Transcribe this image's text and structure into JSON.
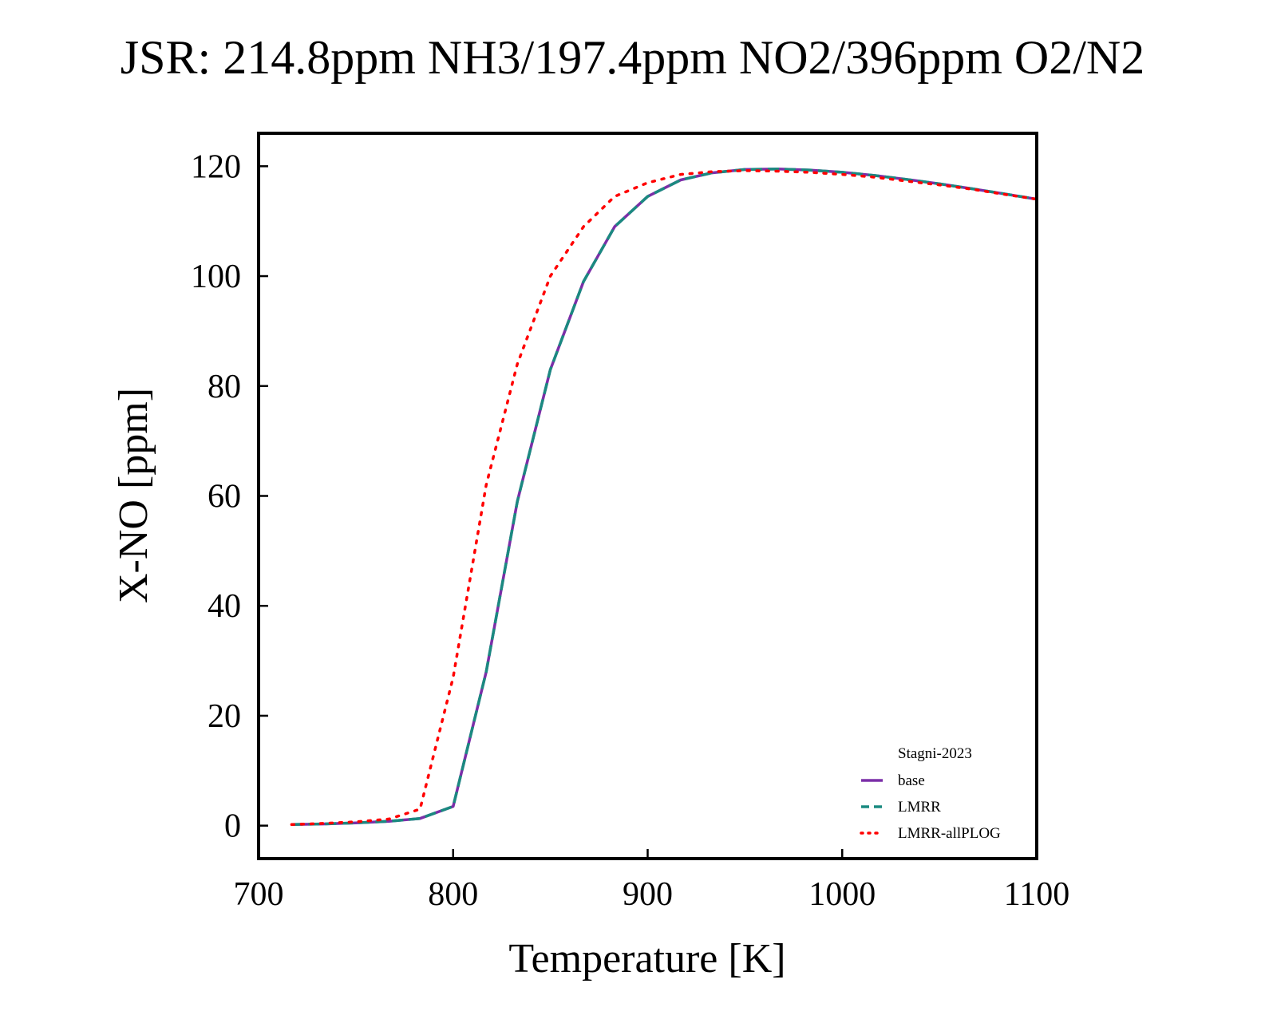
{
  "chart_data": {
    "type": "line",
    "title": "JSR: 214.8ppm NH3/197.4ppm NO2/396ppm O2/N2",
    "xlabel": "Temperature [K]",
    "ylabel": "X-NO [ppm]",
    "xlim": [
      700,
      1100
    ],
    "ylim": [
      -6,
      126
    ],
    "xticks": [
      700,
      800,
      900,
      1000,
      1100
    ],
    "yticks": [
      0,
      20,
      40,
      60,
      80,
      100,
      120
    ],
    "grid": false,
    "legend": {
      "title": "Stagni-2023",
      "placement": "lower-right"
    },
    "series": [
      {
        "name": "base",
        "color": "#7b2fa8",
        "style": "solid",
        "x": [
          717,
          733,
          750,
          767,
          783,
          800,
          817,
          833,
          850,
          867,
          883,
          900,
          917,
          933,
          950,
          967,
          983,
          1000,
          1017,
          1033,
          1050,
          1067,
          1083,
          1100
        ],
        "y": [
          0.2,
          0.3,
          0.5,
          0.8,
          1.3,
          3.5,
          28,
          59,
          83,
          99,
          109,
          114.5,
          117.5,
          118.8,
          119.4,
          119.5,
          119.3,
          118.9,
          118.3,
          117.6,
          116.8,
          115.9,
          115.0,
          114.0
        ]
      },
      {
        "name": "LMRR",
        "color": "#1a8a80",
        "style": "dashed",
        "x": [
          717,
          733,
          750,
          767,
          783,
          800,
          817,
          833,
          850,
          867,
          883,
          900,
          917,
          933,
          950,
          967,
          983,
          1000,
          1017,
          1033,
          1050,
          1067,
          1083,
          1100
        ],
        "y": [
          0.2,
          0.3,
          0.5,
          0.8,
          1.3,
          3.5,
          28,
          59,
          83,
          99,
          109,
          114.5,
          117.5,
          118.8,
          119.4,
          119.5,
          119.3,
          118.9,
          118.3,
          117.6,
          116.8,
          115.9,
          115.0,
          114.0
        ]
      },
      {
        "name": "LMRR-allPLOG",
        "color": "#ff0000",
        "style": "dotted",
        "x": [
          717,
          733,
          750,
          767,
          783,
          800,
          817,
          833,
          850,
          867,
          883,
          900,
          917,
          933,
          950,
          967,
          983,
          1000,
          1017,
          1033,
          1050,
          1067,
          1083,
          1100
        ],
        "y": [
          0.2,
          0.4,
          0.7,
          1.2,
          3.0,
          27,
          62,
          84,
          100,
          109,
          114.5,
          117,
          118.5,
          119.0,
          119.2,
          119.1,
          118.9,
          118.5,
          118.0,
          117.3,
          116.6,
          115.8,
          114.9,
          114.0
        ]
      }
    ]
  }
}
